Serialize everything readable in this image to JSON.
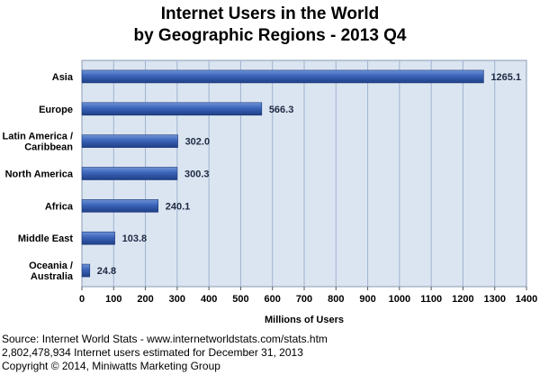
{
  "chart_data": {
    "type": "bar",
    "orientation": "horizontal",
    "title": [
      "Internet Users in the World",
      "by Geographic Regions - 2013 Q4"
    ],
    "categories": [
      [
        "Asia"
      ],
      [
        "Europe"
      ],
      [
        "Latin America /",
        "Caribbean"
      ],
      [
        "North America"
      ],
      [
        "Africa"
      ],
      [
        "Middle East"
      ],
      [
        "Oceania  /",
        "Australia"
      ]
    ],
    "values": [
      1265.1,
      566.3,
      302.0,
      300.3,
      240.1,
      103.8,
      24.8
    ],
    "value_labels": [
      "1265.1",
      "566.3",
      "302.0",
      "300.3",
      "240.1",
      "103.8",
      "24.8"
    ],
    "xlabel": "Millions of Users",
    "xlim": [
      0,
      1400
    ],
    "xticks": [
      0,
      100,
      200,
      300,
      400,
      500,
      600,
      700,
      800,
      900,
      1000,
      1100,
      1200,
      1300,
      1400
    ],
    "grid": "vertical",
    "colors": {
      "bar": "#3a63b8",
      "plot_bg": "#dbe5f1",
      "grid": "#9fb3d0"
    }
  },
  "footer": {
    "source": "Source: Internet World Stats - www.internetworldstats.com/stats.htm",
    "estimate": "2,802,478,934 Internet users estimated for December 31, 2013",
    "copyright": "Copyright © 2014, Miniwatts Marketing Group"
  }
}
